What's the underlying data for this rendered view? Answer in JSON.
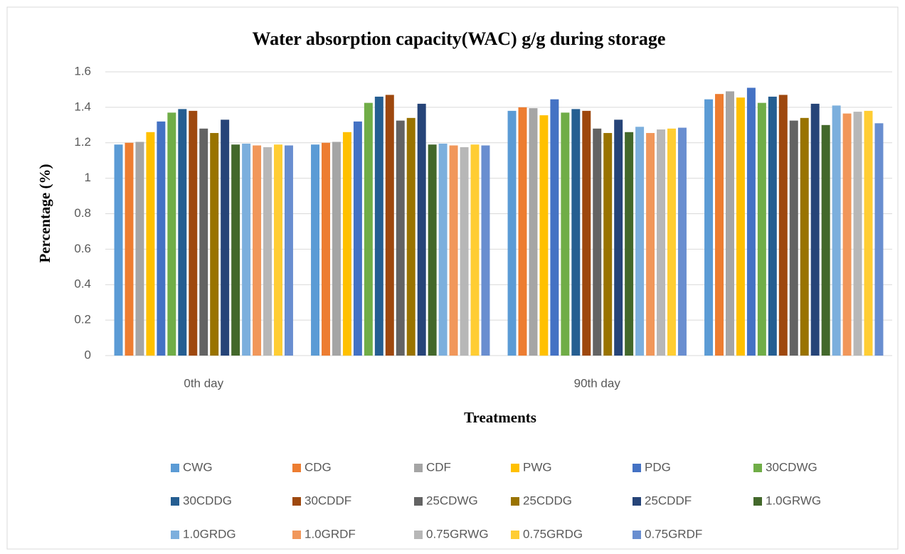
{
  "chart_data": {
    "type": "bar",
    "title": "Water absorption capacity(WAC) g/g during storage",
    "xlabel": "Treatments",
    "ylabel": "Percentage (%)",
    "categories": [
      "0th day",
      null,
      "90th day",
      null
    ],
    "ylim": [
      0,
      1.6
    ],
    "yticks": [
      0,
      0.2,
      0.4,
      0.6,
      0.8,
      1,
      1.2,
      1.4,
      1.6
    ],
    "grid": true,
    "legend": "bottom",
    "series": [
      {
        "name": "CWG",
        "color": "#5b9bd5",
        "values": [
          1.19,
          1.19,
          1.38,
          1.445
        ]
      },
      {
        "name": "CDG",
        "color": "#ed7d31",
        "values": [
          1.2,
          1.2,
          1.4,
          1.475
        ]
      },
      {
        "name": "CDF",
        "color": "#a5a5a5",
        "values": [
          1.205,
          1.205,
          1.395,
          1.49
        ]
      },
      {
        "name": "PWG",
        "color": "#ffc000",
        "values": [
          1.26,
          1.26,
          1.355,
          1.455
        ]
      },
      {
        "name": "PDG",
        "color": "#4472c4",
        "values": [
          1.32,
          1.32,
          1.445,
          1.51
        ]
      },
      {
        "name": "30CDWG",
        "color": "#70ad47",
        "values": [
          1.37,
          1.425,
          1.37,
          1.425
        ]
      },
      {
        "name": "30CDDG",
        "color": "#255e91",
        "values": [
          1.39,
          1.46,
          1.39,
          1.46
        ]
      },
      {
        "name": "30CDDF",
        "color": "#9e480e",
        "values": [
          1.38,
          1.47,
          1.38,
          1.47
        ]
      },
      {
        "name": "25CDWG",
        "color": "#636363",
        "values": [
          1.28,
          1.325,
          1.28,
          1.325
        ]
      },
      {
        "name": "25CDDG",
        "color": "#997300",
        "values": [
          1.255,
          1.34,
          1.255,
          1.34
        ]
      },
      {
        "name": "25CDDF",
        "color": "#264478",
        "values": [
          1.33,
          1.42,
          1.33,
          1.42
        ]
      },
      {
        "name": "1.0GRWG",
        "color": "#43682b",
        "values": [
          1.19,
          1.19,
          1.26,
          1.3
        ]
      },
      {
        "name": "1.0GRDG",
        "color": "#7cafdd",
        "values": [
          1.195,
          1.195,
          1.29,
          1.41
        ]
      },
      {
        "name": "1.0GRDF",
        "color": "#f1975a",
        "values": [
          1.185,
          1.185,
          1.255,
          1.365
        ]
      },
      {
        "name": "0.75GRWG",
        "color": "#b7b7b7",
        "values": [
          1.175,
          1.175,
          1.275,
          1.375
        ]
      },
      {
        "name": "0.75GRDG",
        "color": "#ffcd33",
        "values": [
          1.19,
          1.19,
          1.28,
          1.38
        ]
      },
      {
        "name": "0.75GRDF",
        "color": "#698ed0",
        "values": [
          1.185,
          1.185,
          1.285,
          1.31
        ]
      }
    ]
  }
}
